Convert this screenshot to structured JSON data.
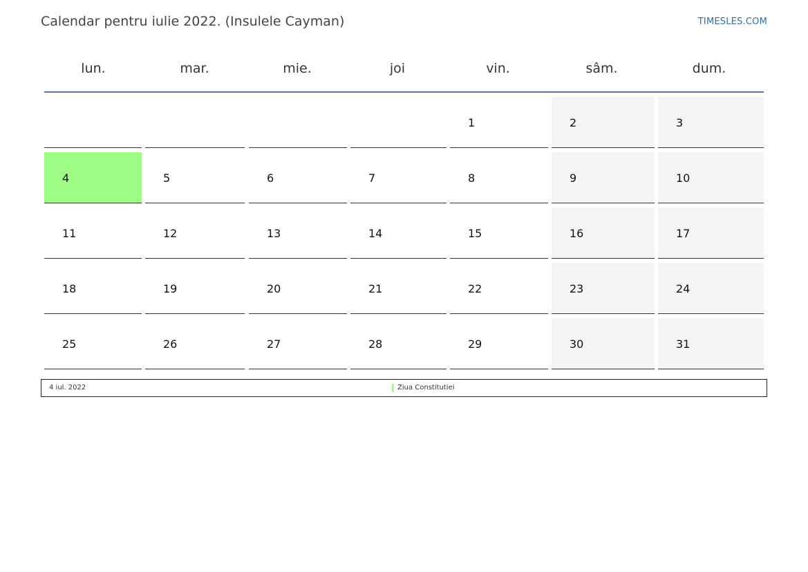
{
  "header": {
    "title": "Calendar pentru iulie 2022. (Insulele Cayman)",
    "brand": "TIMESLES.COM"
  },
  "calendar": {
    "weekdays": [
      "lun.",
      "mar.",
      "mie.",
      "joi",
      "vin.",
      "sâm.",
      "dum."
    ],
    "weeks": [
      [
        "",
        "",
        "",
        "",
        "1",
        "2",
        "3"
      ],
      [
        "4",
        "5",
        "6",
        "7",
        "8",
        "9",
        "10"
      ],
      [
        "11",
        "12",
        "13",
        "14",
        "15",
        "16",
        "17"
      ],
      [
        "18",
        "19",
        "20",
        "21",
        "22",
        "23",
        "24"
      ],
      [
        "25",
        "26",
        "27",
        "28",
        "29",
        "30",
        "31"
      ]
    ],
    "holiday_day": "4"
  },
  "legend": {
    "date": "4 iul. 2022",
    "name": "Ziua Constitutiei",
    "marker_color": "#9ffc86"
  },
  "colors": {
    "holiday": "#9ffc86",
    "weekend": "#f4f4f4",
    "header_rule": "#5b7899",
    "brand": "#2e6ea6"
  }
}
